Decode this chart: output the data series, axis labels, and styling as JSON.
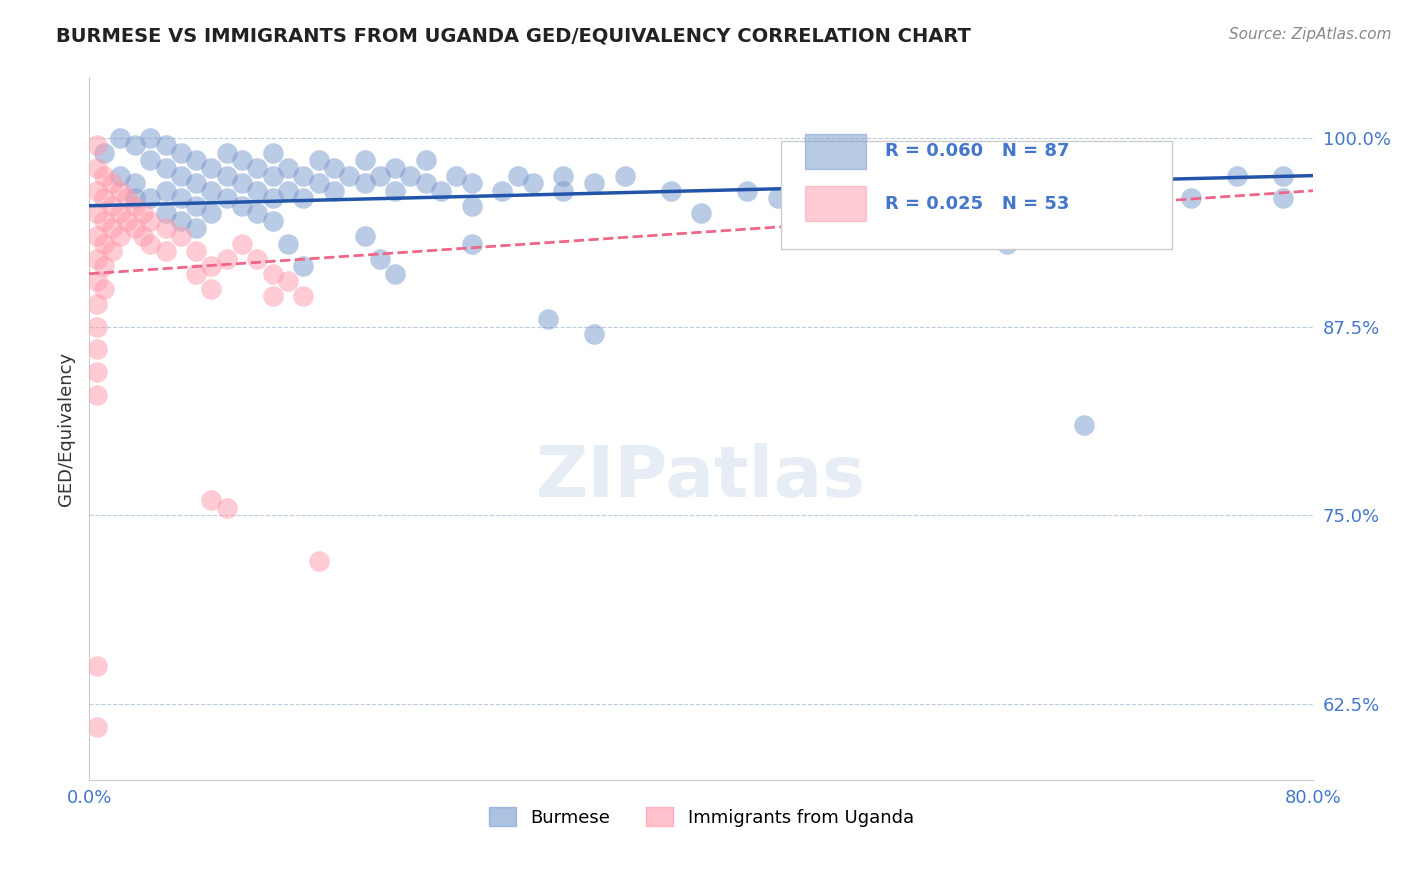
{
  "title": "BURMESE VS IMMIGRANTS FROM UGANDA GED/EQUIVALENCY CORRELATION CHART",
  "source": "Source: ZipAtlas.com",
  "ylabel": "GED/Equivalency",
  "ytick_labels": [
    "62.5%",
    "75.0%",
    "87.5%",
    "100.0%"
  ],
  "ytick_values": [
    0.625,
    0.75,
    0.875,
    1.0
  ],
  "xlim": [
    0.0,
    0.8
  ],
  "ylim": [
    0.575,
    1.04
  ],
  "legend_blue": {
    "R": "0.060",
    "N": "87",
    "label": "Burmese"
  },
  "legend_pink": {
    "R": "0.025",
    "N": "53",
    "label": "Immigrants from Uganda"
  },
  "blue_color": "#7799CC",
  "pink_color": "#FF99AA",
  "blue_line_color": "#2255AA",
  "pink_line_color": "#EE6688",
  "blue_scatter": [
    [
      0.01,
      0.99
    ],
    [
      0.02,
      1.0
    ],
    [
      0.02,
      0.975
    ],
    [
      0.03,
      0.995
    ],
    [
      0.03,
      0.97
    ],
    [
      0.03,
      0.96
    ],
    [
      0.04,
      1.0
    ],
    [
      0.04,
      0.985
    ],
    [
      0.04,
      0.96
    ],
    [
      0.05,
      0.995
    ],
    [
      0.05,
      0.98
    ],
    [
      0.05,
      0.965
    ],
    [
      0.05,
      0.95
    ],
    [
      0.06,
      0.99
    ],
    [
      0.06,
      0.975
    ],
    [
      0.06,
      0.96
    ],
    [
      0.06,
      0.945
    ],
    [
      0.07,
      0.985
    ],
    [
      0.07,
      0.97
    ],
    [
      0.07,
      0.955
    ],
    [
      0.07,
      0.94
    ],
    [
      0.08,
      0.98
    ],
    [
      0.08,
      0.965
    ],
    [
      0.08,
      0.95
    ],
    [
      0.09,
      0.99
    ],
    [
      0.09,
      0.975
    ],
    [
      0.09,
      0.96
    ],
    [
      0.1,
      0.985
    ],
    [
      0.1,
      0.97
    ],
    [
      0.1,
      0.955
    ],
    [
      0.11,
      0.98
    ],
    [
      0.11,
      0.965
    ],
    [
      0.11,
      0.95
    ],
    [
      0.12,
      0.99
    ],
    [
      0.12,
      0.975
    ],
    [
      0.12,
      0.96
    ],
    [
      0.12,
      0.945
    ],
    [
      0.13,
      0.98
    ],
    [
      0.13,
      0.965
    ],
    [
      0.14,
      0.975
    ],
    [
      0.14,
      0.96
    ],
    [
      0.15,
      0.985
    ],
    [
      0.15,
      0.97
    ],
    [
      0.16,
      0.98
    ],
    [
      0.16,
      0.965
    ],
    [
      0.17,
      0.975
    ],
    [
      0.18,
      0.985
    ],
    [
      0.18,
      0.97
    ],
    [
      0.19,
      0.975
    ],
    [
      0.2,
      0.98
    ],
    [
      0.2,
      0.965
    ],
    [
      0.21,
      0.975
    ],
    [
      0.22,
      0.985
    ],
    [
      0.22,
      0.97
    ],
    [
      0.23,
      0.965
    ],
    [
      0.24,
      0.975
    ],
    [
      0.25,
      0.97
    ],
    [
      0.25,
      0.955
    ],
    [
      0.27,
      0.965
    ],
    [
      0.28,
      0.975
    ],
    [
      0.29,
      0.97
    ],
    [
      0.31,
      0.975
    ],
    [
      0.31,
      0.965
    ],
    [
      0.33,
      0.97
    ],
    [
      0.35,
      0.975
    ],
    [
      0.13,
      0.93
    ],
    [
      0.14,
      0.915
    ],
    [
      0.18,
      0.935
    ],
    [
      0.19,
      0.92
    ],
    [
      0.2,
      0.91
    ],
    [
      0.25,
      0.93
    ],
    [
      0.3,
      0.88
    ],
    [
      0.33,
      0.87
    ],
    [
      0.38,
      0.965
    ],
    [
      0.4,
      0.95
    ],
    [
      0.43,
      0.965
    ],
    [
      0.45,
      0.96
    ],
    [
      0.5,
      0.975
    ],
    [
      0.55,
      0.97
    ],
    [
      0.56,
      0.955
    ],
    [
      0.6,
      0.93
    ],
    [
      0.65,
      0.81
    ],
    [
      0.65,
      0.965
    ],
    [
      0.7,
      0.975
    ],
    [
      0.72,
      0.96
    ],
    [
      0.75,
      0.975
    ],
    [
      0.78,
      0.975
    ],
    [
      0.78,
      0.96
    ]
  ],
  "pink_scatter": [
    [
      0.005,
      0.995
    ],
    [
      0.005,
      0.98
    ],
    [
      0.005,
      0.965
    ],
    [
      0.005,
      0.95
    ],
    [
      0.005,
      0.935
    ],
    [
      0.005,
      0.92
    ],
    [
      0.005,
      0.905
    ],
    [
      0.005,
      0.89
    ],
    [
      0.005,
      0.875
    ],
    [
      0.005,
      0.86
    ],
    [
      0.005,
      0.845
    ],
    [
      0.005,
      0.83
    ],
    [
      0.01,
      0.975
    ],
    [
      0.01,
      0.96
    ],
    [
      0.01,
      0.945
    ],
    [
      0.01,
      0.93
    ],
    [
      0.01,
      0.915
    ],
    [
      0.01,
      0.9
    ],
    [
      0.015,
      0.97
    ],
    [
      0.015,
      0.955
    ],
    [
      0.015,
      0.94
    ],
    [
      0.015,
      0.925
    ],
    [
      0.02,
      0.965
    ],
    [
      0.02,
      0.95
    ],
    [
      0.02,
      0.935
    ],
    [
      0.025,
      0.96
    ],
    [
      0.025,
      0.945
    ],
    [
      0.03,
      0.955
    ],
    [
      0.03,
      0.94
    ],
    [
      0.035,
      0.95
    ],
    [
      0.035,
      0.935
    ],
    [
      0.04,
      0.945
    ],
    [
      0.04,
      0.93
    ],
    [
      0.05,
      0.94
    ],
    [
      0.05,
      0.925
    ],
    [
      0.06,
      0.935
    ],
    [
      0.07,
      0.925
    ],
    [
      0.07,
      0.91
    ],
    [
      0.08,
      0.915
    ],
    [
      0.08,
      0.9
    ],
    [
      0.09,
      0.92
    ],
    [
      0.1,
      0.93
    ],
    [
      0.11,
      0.92
    ],
    [
      0.12,
      0.91
    ],
    [
      0.12,
      0.895
    ],
    [
      0.13,
      0.905
    ],
    [
      0.14,
      0.895
    ],
    [
      0.08,
      0.76
    ],
    [
      0.09,
      0.755
    ],
    [
      0.15,
      0.72
    ],
    [
      0.005,
      0.65
    ],
    [
      0.005,
      0.61
    ]
  ]
}
